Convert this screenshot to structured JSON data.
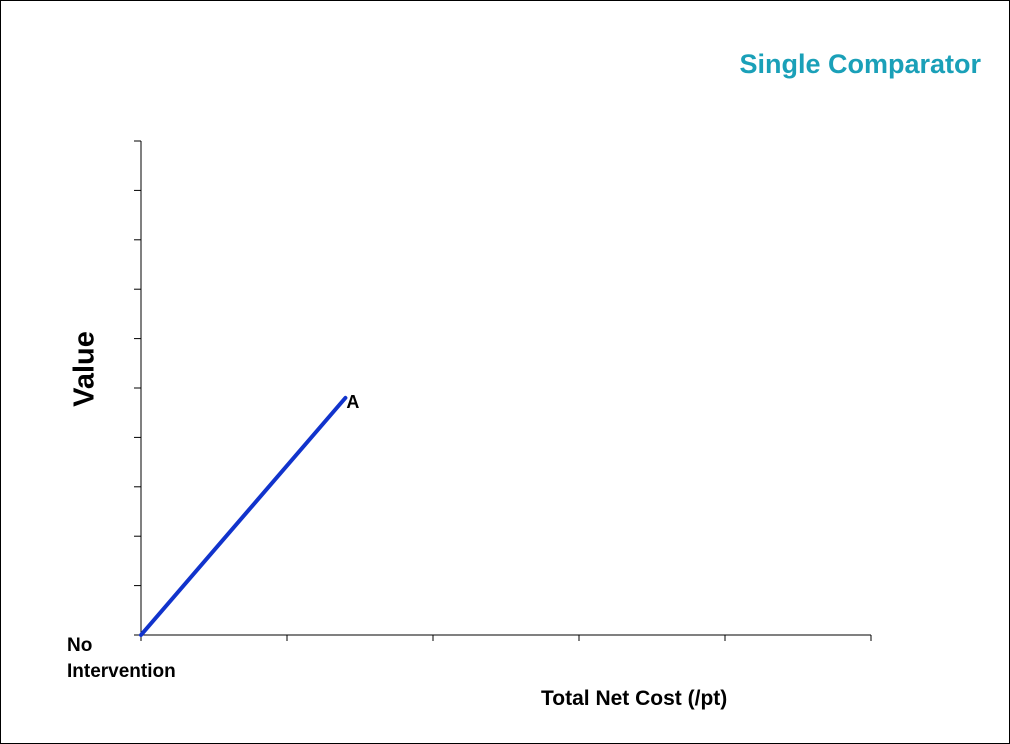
{
  "chart_data": {
    "type": "line",
    "title": "Single Comparator",
    "xlabel": "Total Net Cost (/pt)",
    "ylabel": "Value",
    "origin_label": [
      "No",
      "Intervention"
    ],
    "xlim": [
      0,
      5
    ],
    "ylim": [
      0,
      10
    ],
    "x_ticks": [
      0,
      1,
      2,
      3,
      4,
      5
    ],
    "y_ticks": [
      0,
      1,
      2,
      3,
      4,
      5,
      6,
      7,
      8,
      9,
      10
    ],
    "grid": false,
    "series": [
      {
        "color": "#1133cc",
        "points": [
          {
            "x": 0,
            "y": 0,
            "label": ""
          },
          {
            "x": 1.4,
            "y": 4.8,
            "label": "A"
          }
        ]
      }
    ]
  }
}
